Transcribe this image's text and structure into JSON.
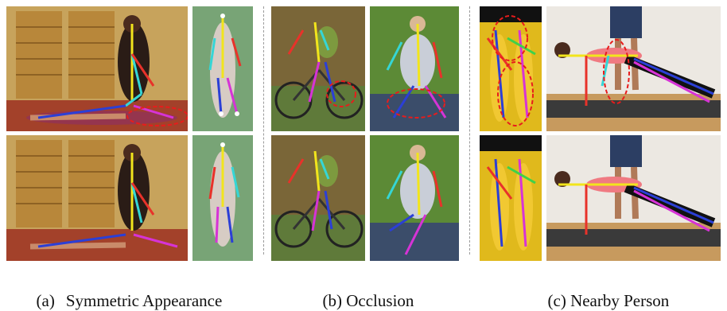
{
  "captions": {
    "a": {
      "tag": "(a)",
      "text": "Symmetric Appearance"
    },
    "b": {
      "tag": "(b)",
      "text": "Occlusion"
    },
    "c": {
      "tag": "(c)",
      "text": "Nearby Person"
    }
  },
  "colors": {
    "limb_red": "#e8322a",
    "limb_yellow": "#f2e51c",
    "limb_cyan": "#35d6d6",
    "limb_blue": "#2b3fd6",
    "limb_magenta": "#d633d6",
    "limb_green": "#3fd14a",
    "highlight_circle": "#e81c1c"
  },
  "groups": [
    {
      "id": "a",
      "rows": 2,
      "images_per_row": 2,
      "highlight_circles_in_top_row": true
    },
    {
      "id": "b",
      "rows": 2,
      "images_per_row": 2,
      "highlight_circles_in_top_row": true
    },
    {
      "id": "c",
      "rows": 2,
      "images_per_row": 2,
      "highlight_circles_in_top_row": true
    }
  ]
}
